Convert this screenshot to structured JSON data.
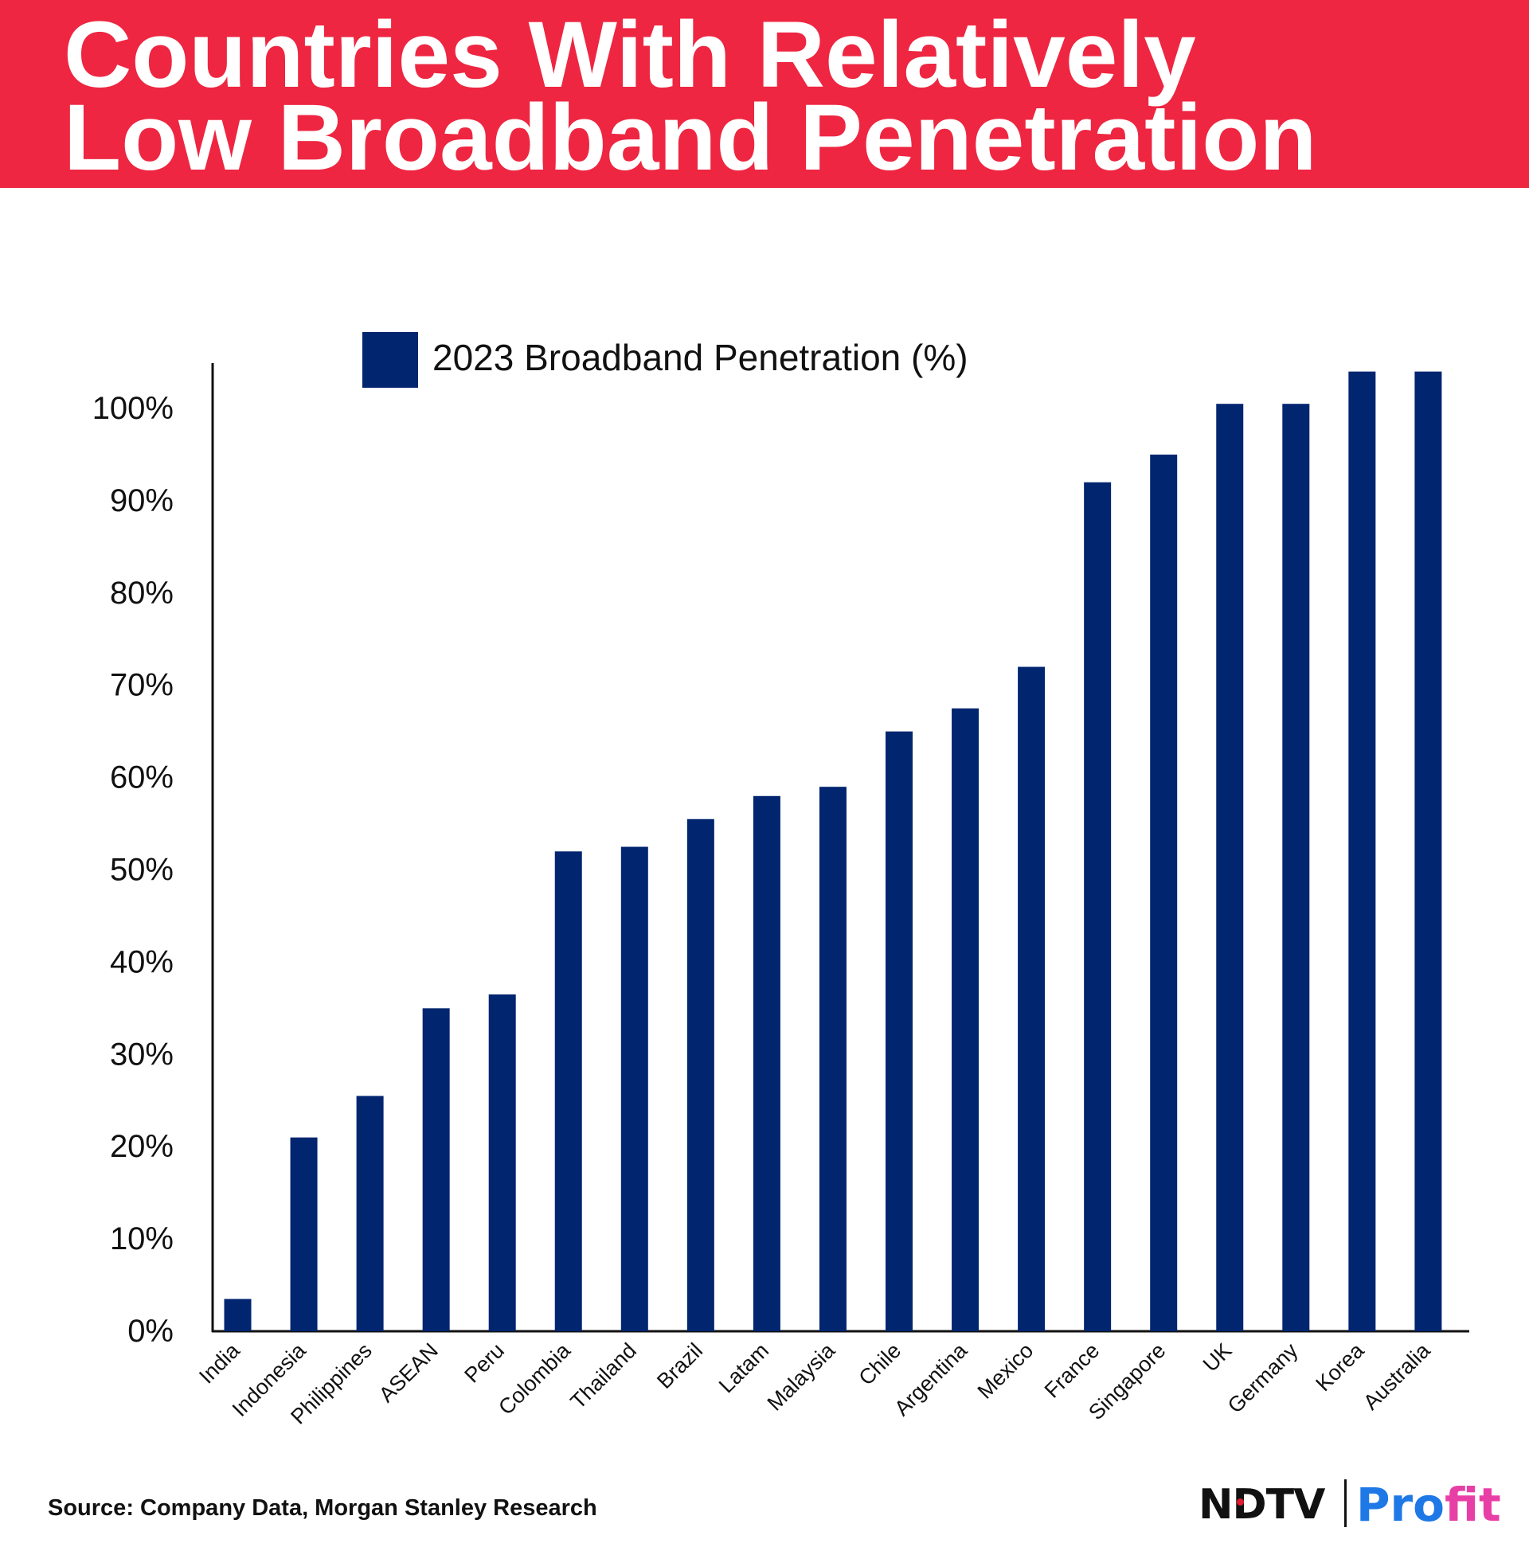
{
  "title": {
    "line1": "Countries With Relatively",
    "line2": "Low Broadband Penetration"
  },
  "chart_data": {
    "type": "bar",
    "title": "Countries With Relatively Low Broadband Penetration",
    "categories": [
      "India",
      "Indonesia",
      "Philippines",
      "ASEAN",
      "Peru",
      "Colombia",
      "Thailand",
      "Brazil",
      "Latam",
      "Malaysia",
      "Chile",
      "Argentina",
      "Mexico",
      "France",
      "Singapore",
      "UK",
      "Germany",
      "Korea",
      "Australia"
    ],
    "series": [
      {
        "name": "2023 Broadband Penetration (%)",
        "values": [
          3.5,
          21,
          25.5,
          35,
          36.5,
          52,
          52.5,
          55.5,
          58,
          59,
          65,
          67.5,
          72,
          92,
          95,
          100.5,
          100.5,
          104,
          104
        ]
      }
    ],
    "color": "#022570",
    "ylim": [
      0,
      100
    ],
    "yticks": [
      0,
      10,
      20,
      30,
      40,
      50,
      60,
      70,
      80,
      90,
      100
    ],
    "ytick_labels": [
      "0%",
      "10%",
      "20%",
      "30%",
      "40%",
      "50%",
      "60%",
      "70%",
      "80%",
      "90%",
      "100%"
    ],
    "xlabel": "",
    "ylabel": "",
    "legend": "top-center",
    "grid": false
  },
  "source": "Source: Company Data, Morgan Stanley Research",
  "logo": {
    "ndtv": "NDTV",
    "profit_pro": "Pro",
    "profit_fit": "fit"
  }
}
